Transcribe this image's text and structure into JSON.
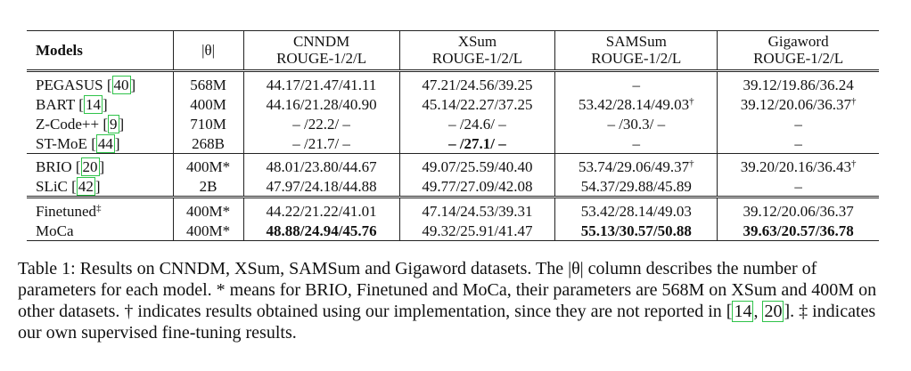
{
  "table": {
    "headers": [
      {
        "line1": "Models",
        "line2": ""
      },
      {
        "line1": "|θ|",
        "line2": ""
      },
      {
        "line1": "CNNDM",
        "line2": "ROUGE-1/2/L"
      },
      {
        "line1": "XSum",
        "line2": "ROUGE-1/2/L"
      },
      {
        "line1": "SAMSum",
        "line2": "ROUGE-1/2/L"
      },
      {
        "line1": "Gigaword",
        "line2": "ROUGE-1/2/L"
      }
    ],
    "groups": [
      [
        {
          "name": "PEGASUS",
          "ref": "40",
          "params": "568M",
          "cnndm": "44.17/21.47/41.11",
          "xsum": "47.21/24.56/39.25",
          "samsum": "–",
          "gigaword": "39.12/19.86/36.24"
        },
        {
          "name": "BART",
          "ref": "14",
          "params": "400M",
          "cnndm": "44.16/21.28/40.90",
          "xsum": "45.14/22.27/37.25",
          "samsum": "53.42/28.14/49.03",
          "samsum_mark": "†",
          "gigaword": "39.12/20.06/36.37",
          "gigaword_mark": "†"
        },
        {
          "name": "Z-Code++",
          "ref": "9",
          "params": "710M",
          "cnndm": "– /22.2/ –",
          "xsum": "– /24.6/ –",
          "samsum": "– /30.3/ –",
          "gigaword": "–"
        },
        {
          "name": "ST-MoE",
          "ref": "44",
          "params": "268B",
          "cnndm": "– /21.7/ –",
          "xsum": "– /27.1/ –",
          "xsum_bold": true,
          "samsum": "–",
          "gigaword": "–"
        }
      ],
      [
        {
          "name": "BRIO",
          "ref": "20",
          "params": "400M*",
          "cnndm": "48.01/23.80/44.67",
          "xsum": "49.07/25.59/40.40",
          "samsum": "53.74/29.06/49.37",
          "samsum_mark": "†",
          "gigaword": "39.20/20.16/36.43",
          "gigaword_mark": "†"
        },
        {
          "name": "SLiC",
          "ref": "42",
          "params": "2B",
          "cnndm": "47.97/24.18/44.88",
          "xsum": "49.77/27.09/42.08",
          "samsum": "54.37/29.88/45.89",
          "gigaword": "–"
        }
      ],
      [
        {
          "name": "Finetuned",
          "name_mark": "‡",
          "ref": "",
          "params": "400M*",
          "cnndm": "44.22/21.22/41.01",
          "xsum": "47.14/24.53/39.31",
          "samsum": "53.42/28.14/49.03",
          "gigaword": "39.12/20.06/36.37"
        },
        {
          "name": "MoCa",
          "ref": "",
          "params": "400M*",
          "cnndm": "48.88/24.94/45.76",
          "cnndm_bold": true,
          "xsum": "49.32/25.91/41.47",
          "samsum": "55.13/30.57/50.88",
          "samsum_bold": true,
          "gigaword": "39.63/20.57/36.78",
          "gigaword_bold": true
        }
      ]
    ]
  },
  "caption": {
    "part1": "Table 1: Results on CNNDM, XSum, SAMSum and Gigaword datasets. The |θ| column describes the number of parameters for each model. * means for BRIO, Finetuned and MoCa, their parameters are 568M on XSum and 400M on other datasets. † indicates results obtained using our implementation, since they are not reported in [",
    "ref1": "14",
    "sep": ", ",
    "ref2": "20",
    "part2": "]. ‡ indicates our own supervised fine-tuning results."
  }
}
